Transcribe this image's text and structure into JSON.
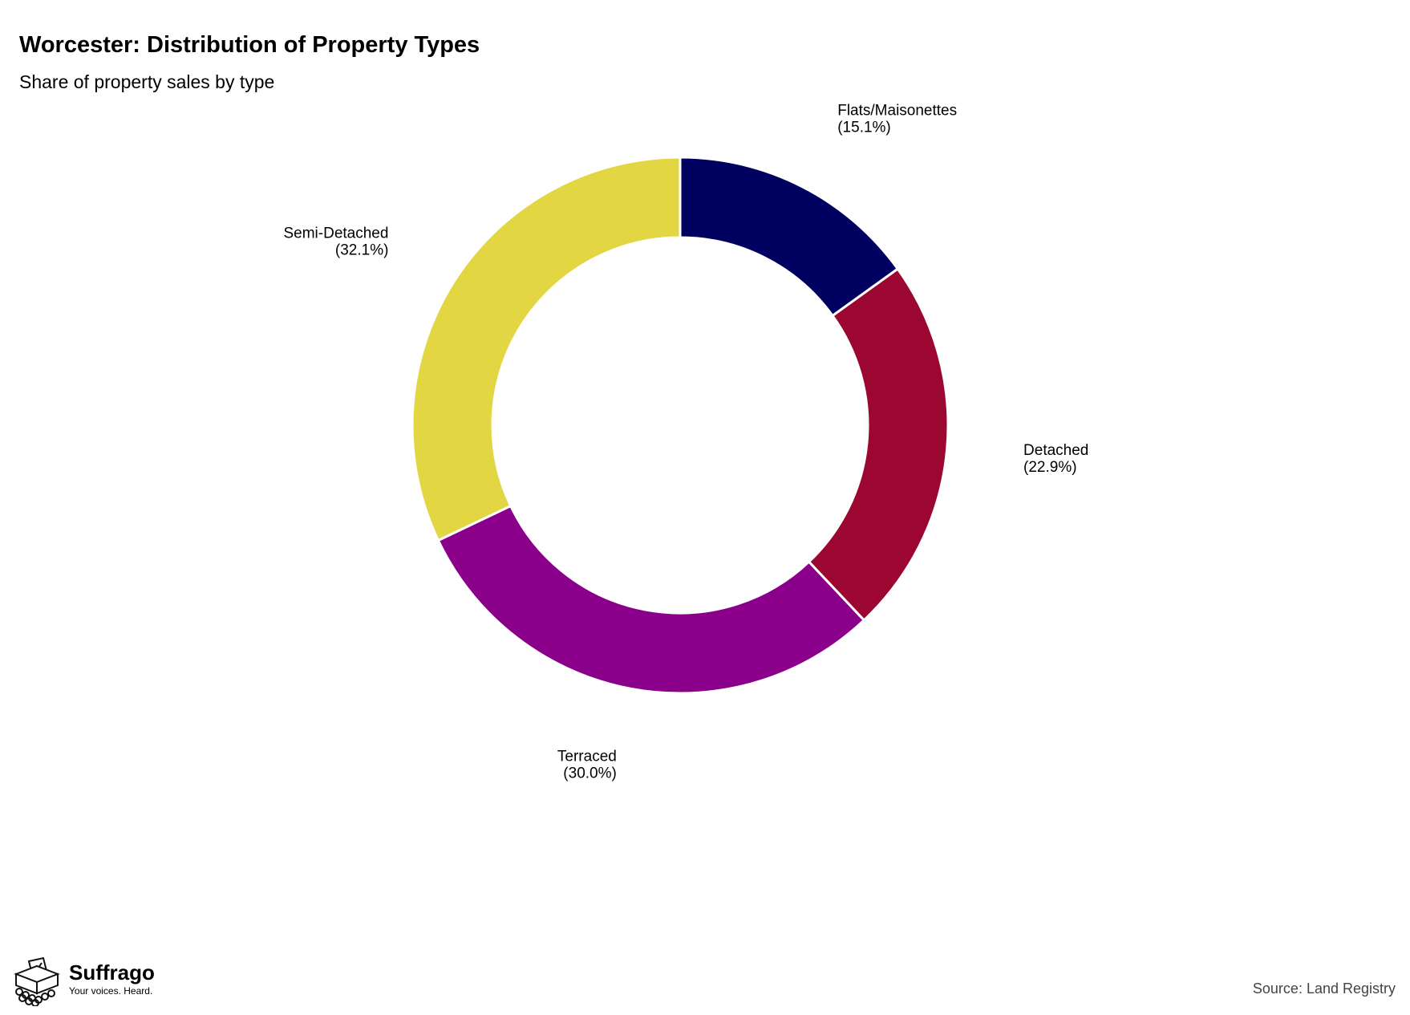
{
  "header": {
    "title": "Worcester: Distribution of Property Types",
    "subtitle": "Share of property sales by type"
  },
  "chart_data": {
    "type": "pie",
    "variant": "donut",
    "title": "Worcester: Distribution of Property Types",
    "subtitle": "Share of property sales by type",
    "start_angle": "12 o'clock",
    "direction": "clockwise",
    "slices": [
      {
        "label": "Flats/Maisonettes",
        "value": 15.1,
        "value_label": "(15.1%)",
        "color": "#000060"
      },
      {
        "label": "Detached",
        "value": 22.9,
        "value_label": "(22.9%)",
        "color": "#9b0731"
      },
      {
        "label": "Terraced",
        "value": 30.0,
        "value_label": "(30.0%)",
        "color": "#8a008a"
      },
      {
        "label": "Semi-Detached",
        "value": 32.1,
        "value_label": "(32.1%)",
        "color": "#e2d643"
      }
    ]
  },
  "branding": {
    "name": "Suffrago",
    "tagline": "Your voices. Heard.",
    "logo_icon": "ballot-box-icon"
  },
  "footer": {
    "source": "Source: Land Registry"
  }
}
